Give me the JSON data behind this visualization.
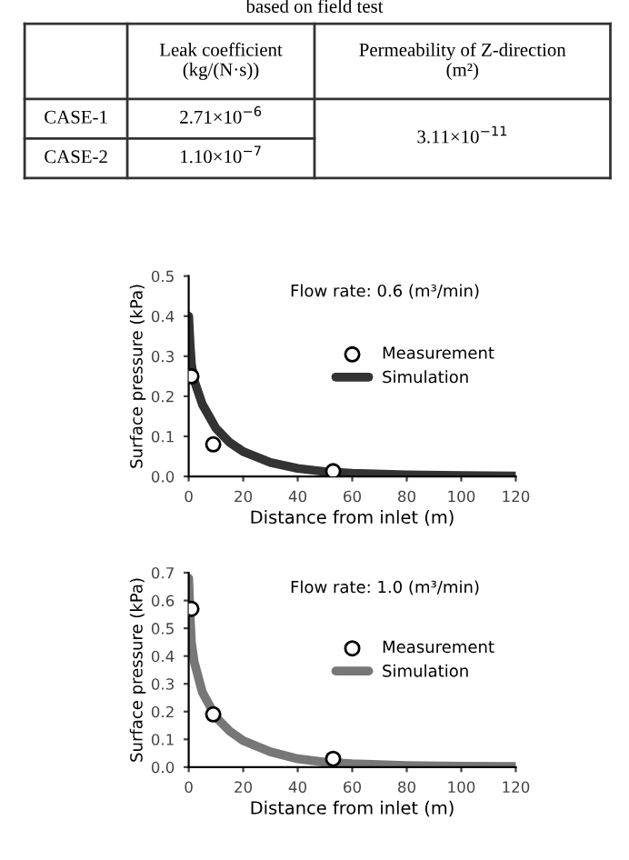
{
  "chart_data": [
    {
      "type": "other",
      "annotations": [
        "based on field test",
        "Leak coefficient\n(kg/(N·s))",
        "Permeability of Z-direction\n(m²)",
        "CASE-1",
        "2.71×10$^{−6}$",
        "CASE-2",
        "1.10×10$^{−7}$",
        "3.11×10$^{−11}$"
      ]
    },
    {
      "type": "line",
      "title": "Flow rate: 0.6 (m³/min)",
      "xlabel": "Distance from inlet (m)",
      "ylabel": "Surface pressure (kPa)",
      "xlim": [
        0,
        120
      ],
      "ylim": [
        0,
        0.5
      ],
      "xticks": [
        0,
        20,
        40,
        60,
        80,
        100,
        120
      ],
      "yticks": [
        {
          "value": 0,
          "label": "0.0"
        },
        0.1,
        0.2,
        0.3,
        0.4,
        0.5
      ],
      "grid": false,
      "legend": "right",
      "series": [
        {
          "name": "Measurement",
          "type": "scatter",
          "marker": "circle",
          "color": "#000000",
          "x": [
            1,
            9,
            53
          ],
          "values": [
            0.25,
            0.08,
            0.013
          ]
        },
        {
          "name": "Simulation",
          "type": "line",
          "color": "#333333",
          "x": [
            0,
            0.5,
            1,
            2,
            5,
            10,
            15,
            20,
            30,
            40,
            50,
            60,
            80,
            100,
            120
          ],
          "values": [
            0.4,
            0.33,
            0.28,
            0.24,
            0.18,
            0.12,
            0.085,
            0.062,
            0.035,
            0.02,
            0.012,
            0.008,
            0.004,
            0.002,
            0.001
          ]
        }
      ]
    },
    {
      "type": "line",
      "title": "Flow rate: 1.0 (m³/min)",
      "xlabel": "Distance from inlet (m)",
      "ylabel": "Surface pressure (kPa)",
      "xlim": [
        0,
        120
      ],
      "ylim": [
        0,
        0.7
      ],
      "xticks": [
        0,
        20,
        40,
        60,
        80,
        100,
        120
      ],
      "yticks": [
        {
          "value": 0,
          "label": "0.0"
        },
        0.1,
        0.2,
        0.3,
        0.4,
        0.5,
        0.6,
        0.7
      ],
      "grid": false,
      "legend": "right",
      "series": [
        {
          "name": "Measurement",
          "type": "scatter",
          "marker": "circle",
          "color": "#000000",
          "x": [
            1,
            9,
            53
          ],
          "values": [
            0.57,
            0.19,
            0.03
          ]
        },
        {
          "name": "Simulation",
          "type": "line",
          "color": "#777777",
          "x": [
            0,
            0.5,
            1,
            2,
            5,
            10,
            15,
            20,
            30,
            40,
            50,
            60,
            80,
            100,
            120
          ],
          "values": [
            0.68,
            0.55,
            0.45,
            0.38,
            0.27,
            0.18,
            0.13,
            0.095,
            0.055,
            0.03,
            0.018,
            0.012,
            0.006,
            0.003,
            0.002
          ]
        }
      ]
    }
  ]
}
